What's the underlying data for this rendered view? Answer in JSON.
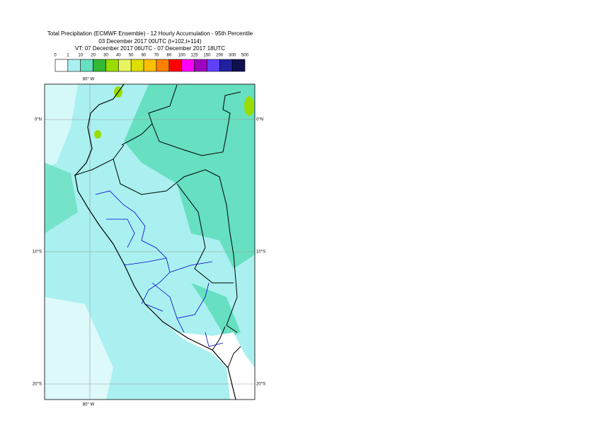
{
  "header": {
    "title": [
      "Total Precipitation (ECMWF Ensemble) - 12 Hourly Accumulation - 95th Percentile",
      "03 December 2017 00UTC (t+102,t+114)",
      "VT: 07 December 2017 06UTC - 07 December 2017 18UTC"
    ]
  },
  "colorbar": {
    "labels": [
      "0",
      "1",
      "10",
      "20",
      "30",
      "40",
      "50",
      "60",
      "70",
      "80",
      "100",
      "125",
      "150",
      "200",
      "300",
      "500"
    ],
    "colors": [
      "#ffffff",
      "#aaf0f0",
      "#66e0c0",
      "#33b833",
      "#99dd00",
      "#e6f560",
      "#dede00",
      "#ffc000",
      "#ff8000",
      "#ff0000",
      "#ff00ff",
      "#a000c0",
      "#6040ff",
      "#2020a0",
      "#101050"
    ]
  },
  "map": {
    "lon_label": "80° W",
    "lat_labels": [
      "0°N",
      "10°S",
      "20°S"
    ]
  }
}
